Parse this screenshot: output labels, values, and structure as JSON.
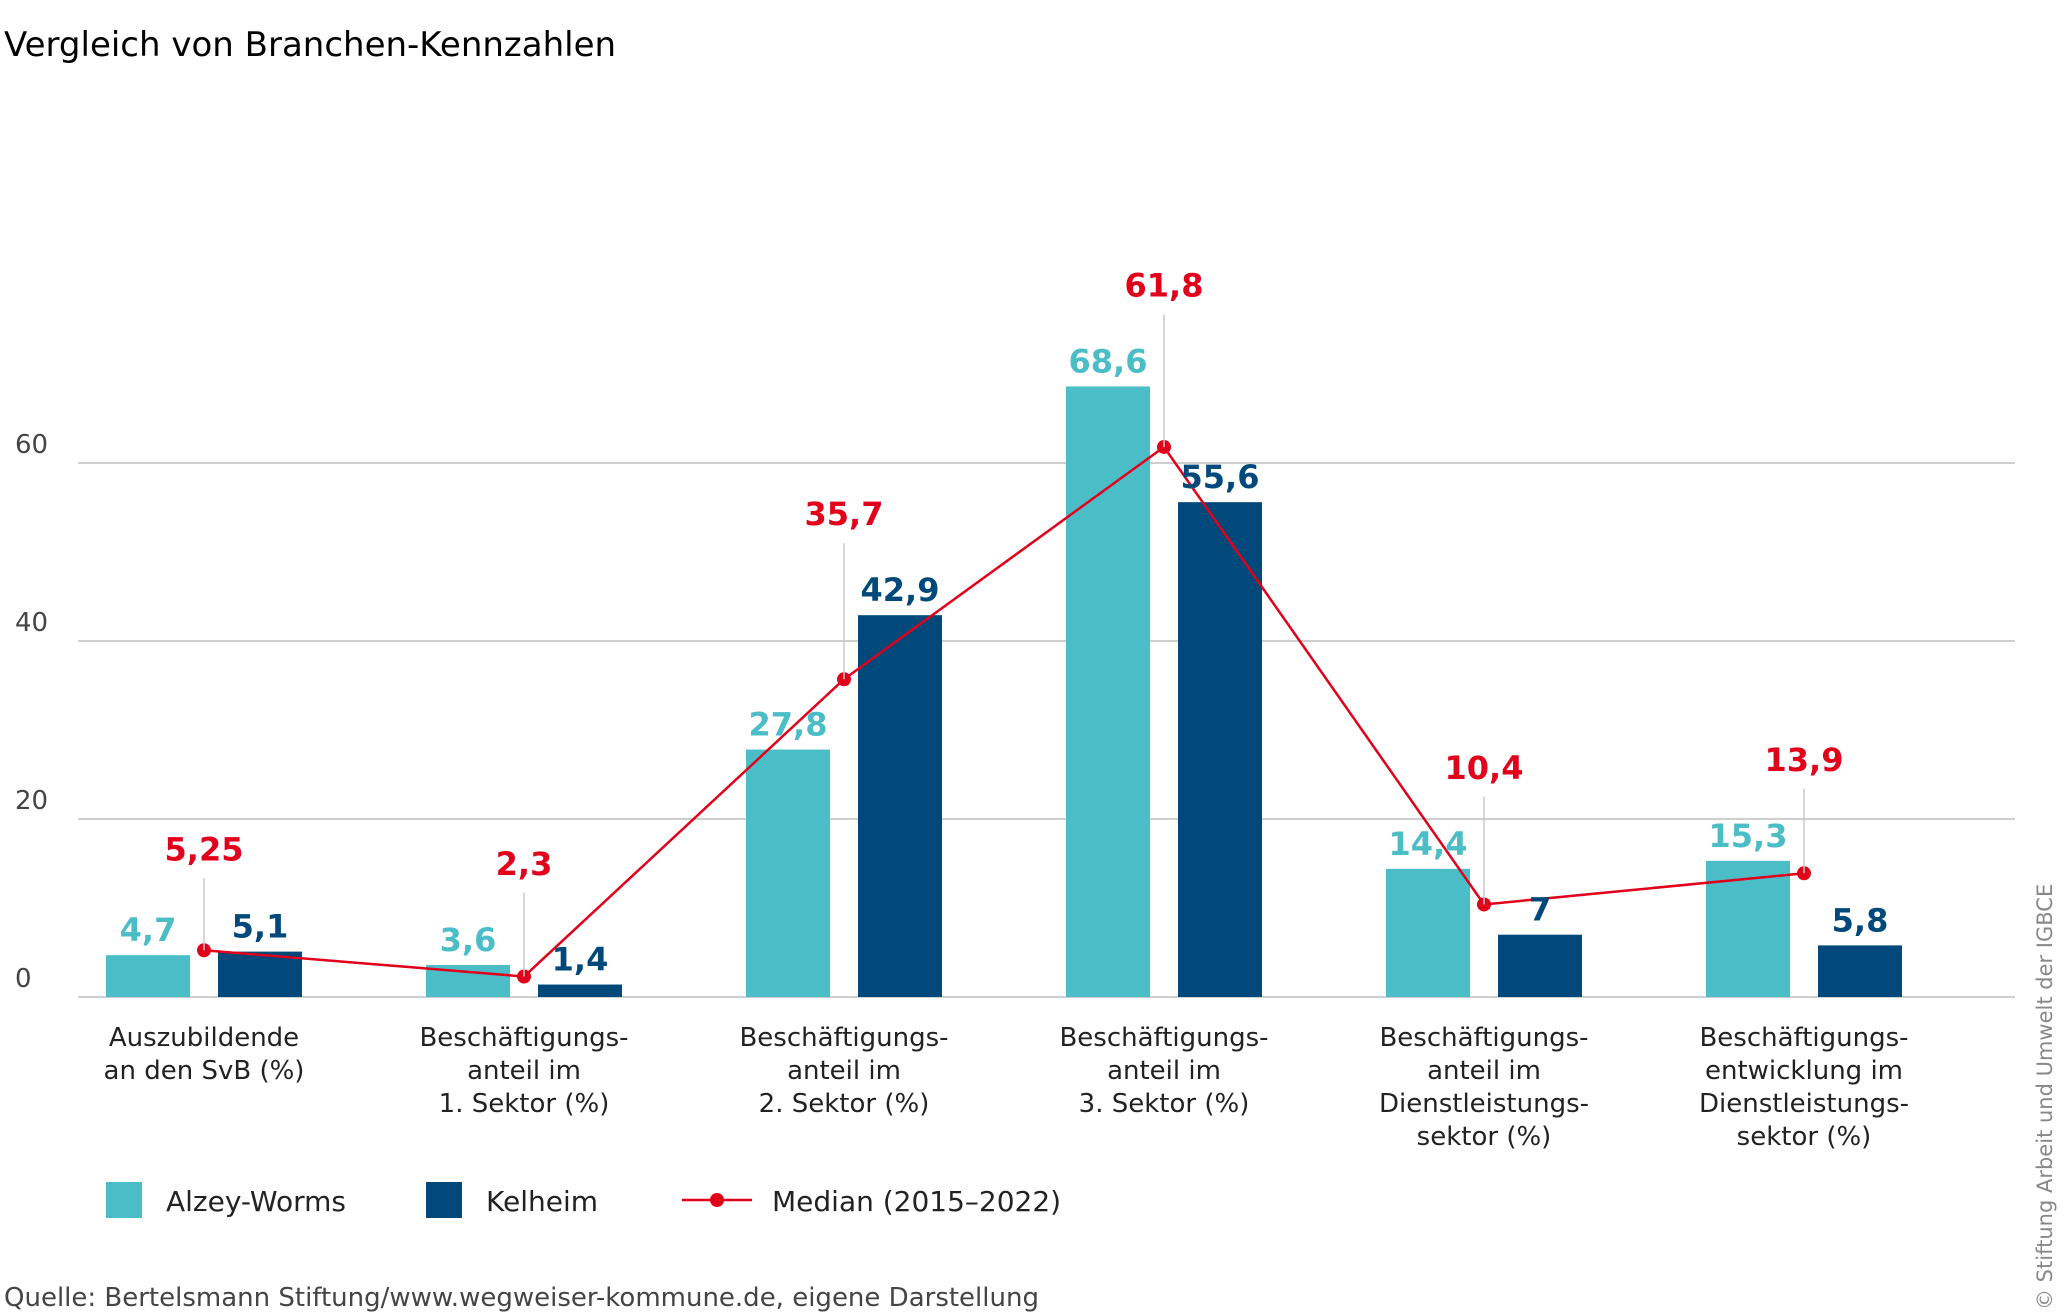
{
  "title": "Vergleich von Branchen-Kennzahlen",
  "source": "Quelle: Bertelsmann Stiftung/www.wegweiser-kommune.de, eigene Darstellung",
  "credit": "© Stiftung Arbeit und Umwelt der IGBCE",
  "colors": {
    "alzey": "#4bbdc7",
    "kelheim": "#00497a",
    "median": "#e2001a",
    "grid": "#bdbdbd",
    "leader": "#c8c8c8"
  },
  "chart_data": {
    "type": "bar",
    "title": "Vergleich von Branchen-Kennzahlen",
    "xlabel": "",
    "ylabel": "",
    "ylim": [
      0,
      70
    ],
    "yticks": [
      0,
      20,
      40,
      60
    ],
    "ytick_labels": [
      "0",
      "20",
      "40",
      "60"
    ],
    "grid": true,
    "legend_position": "bottom-left",
    "categories": [
      [
        "Auszubildende",
        "an den SvB (%)"
      ],
      [
        "Beschäftigungs-",
        "anteil im",
        "1. Sektor (%)"
      ],
      [
        "Beschäftigungs-",
        "anteil im",
        "2. Sektor (%)"
      ],
      [
        "Beschäftigungs-",
        "anteil im",
        "3. Sektor (%)"
      ],
      [
        "Beschäftigungs-",
        "anteil im",
        "Dienstleistungs-",
        "sektor (%)"
      ],
      [
        "Beschäftigungs-",
        "entwicklung im",
        "Dienstleistungs-",
        "sektor (%)"
      ]
    ],
    "series": [
      {
        "name": "Alzey-Worms",
        "kind": "bar",
        "color": "#4bbdc7",
        "values": [
          4.7,
          3.6,
          27.8,
          68.6,
          14.4,
          15.3
        ],
        "labels": [
          "4,7",
          "3,6",
          "27,8",
          "68,6",
          "14,4",
          "15,3"
        ]
      },
      {
        "name": "Kelheim",
        "kind": "bar",
        "color": "#00497a",
        "values": [
          5.1,
          1.4,
          42.9,
          55.6,
          7,
          5.8
        ],
        "labels": [
          "5,1",
          "1,4",
          "42,9",
          "55,6",
          "7",
          "5,8"
        ]
      },
      {
        "name": "Median (2015–2022)",
        "kind": "line",
        "color": "#e2001a",
        "values": [
          5.25,
          2.3,
          35.7,
          61.8,
          10.4,
          13.9
        ],
        "labels": [
          "5,25",
          "2,3",
          "35,7",
          "61,8",
          "10,4",
          "13,9"
        ]
      }
    ]
  }
}
